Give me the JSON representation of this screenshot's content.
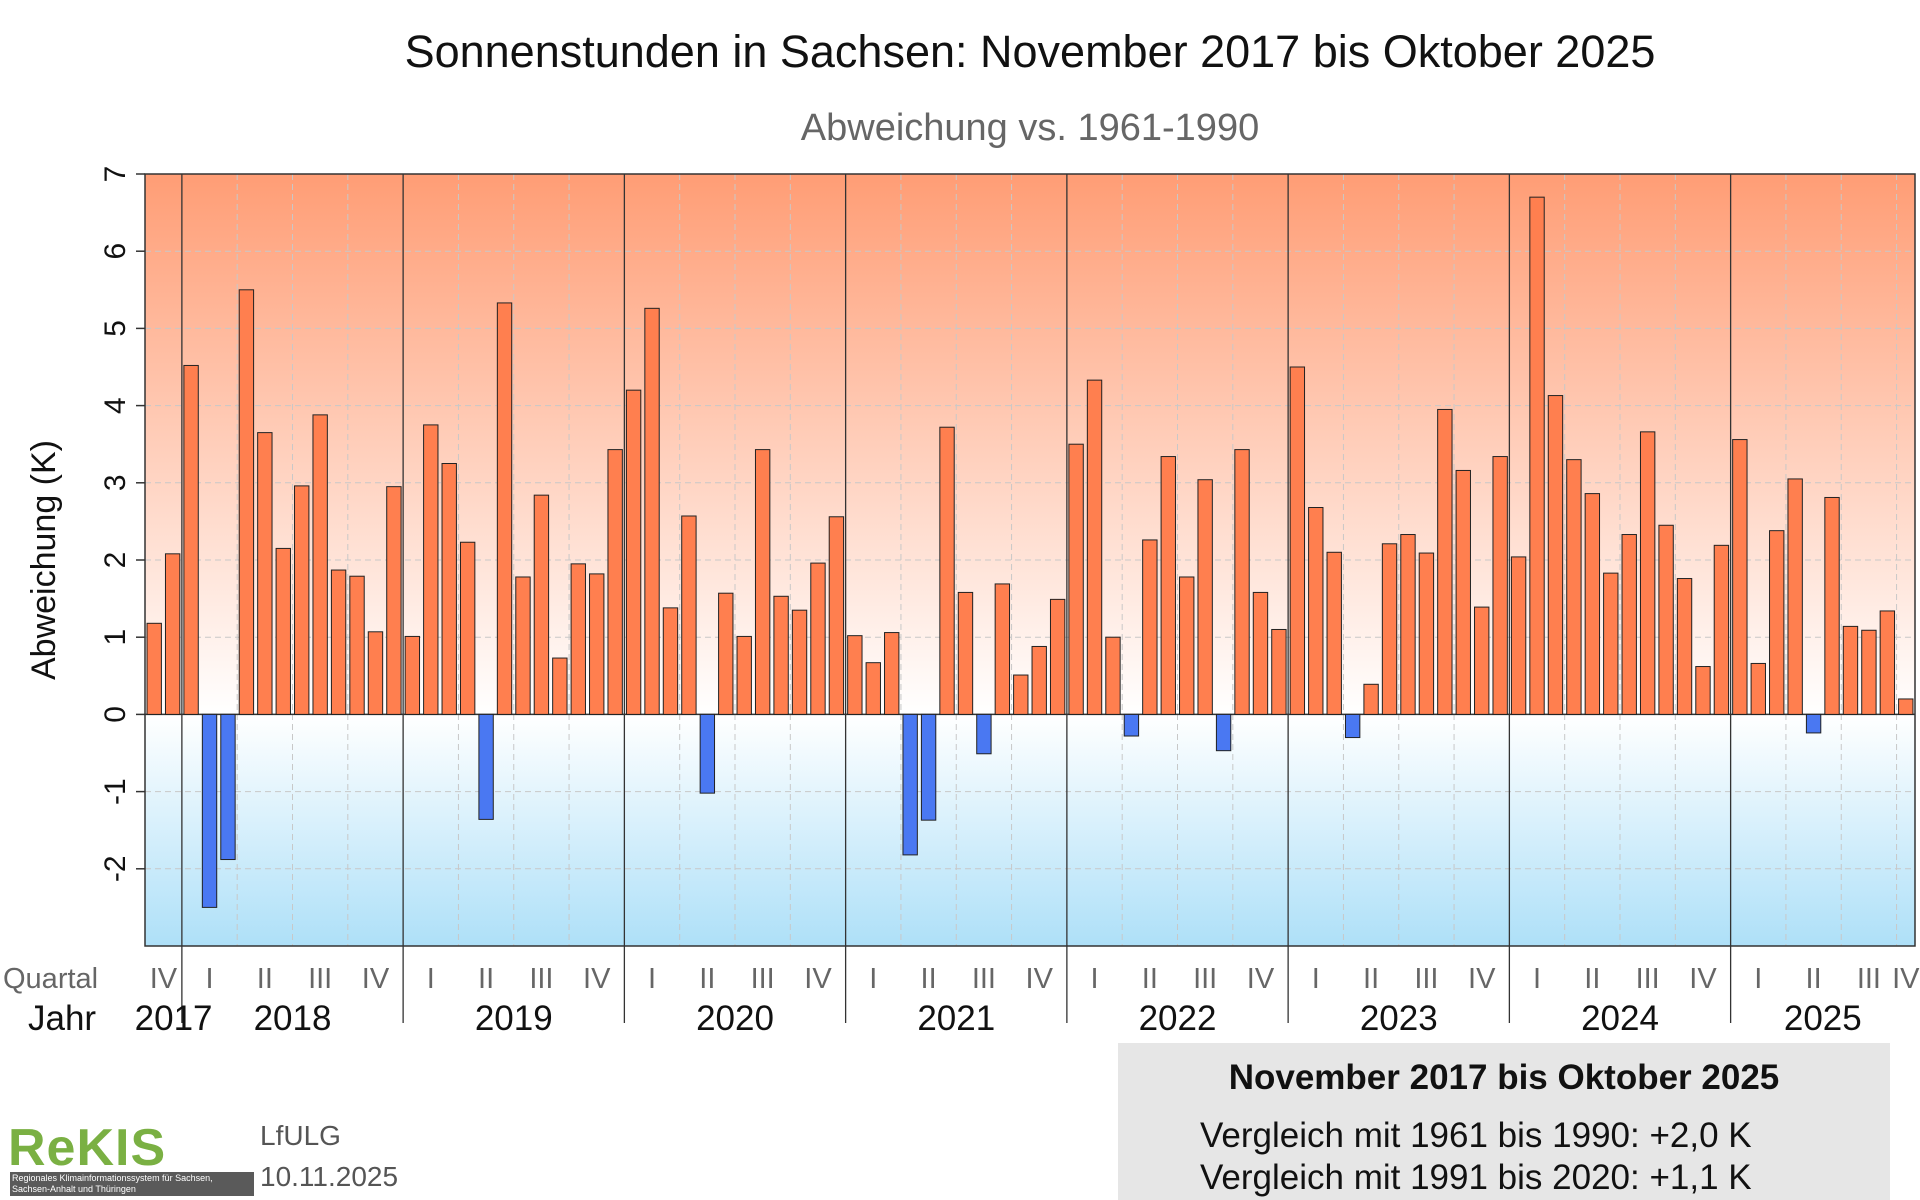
{
  "chart_data": {
    "type": "bar",
    "title": "Sonnenstunden in Sachsen: November 2017 bis Oktober 2025",
    "subtitle": "Abweichung vs. 1961-1990",
    "ylabel": "Abweichung (K)",
    "ylim": [
      -3,
      7
    ],
    "yticks": [
      -2,
      -1,
      0,
      1,
      2,
      3,
      4,
      5,
      6,
      7
    ],
    "grid": true,
    "quarter_row_label": "Quartal",
    "year_row_label": "Jahr",
    "years": [
      "2017",
      "2018",
      "2019",
      "2020",
      "2021",
      "2022",
      "2023",
      "2024",
      "2025"
    ],
    "quarter_labels": [
      {
        "label": "IV",
        "year": "2017"
      },
      {
        "label": "I",
        "year": "2018"
      },
      {
        "label": "II",
        "year": "2018"
      },
      {
        "label": "III",
        "year": "2018"
      },
      {
        "label": "IV",
        "year": "2018"
      },
      {
        "label": "I",
        "year": "2019"
      },
      {
        "label": "II",
        "year": "2019"
      },
      {
        "label": "III",
        "year": "2019"
      },
      {
        "label": "IV",
        "year": "2019"
      },
      {
        "label": "I",
        "year": "2020"
      },
      {
        "label": "II",
        "year": "2020"
      },
      {
        "label": "III",
        "year": "2020"
      },
      {
        "label": "IV",
        "year": "2020"
      },
      {
        "label": "I",
        "year": "2021"
      },
      {
        "label": "II",
        "year": "2021"
      },
      {
        "label": "III",
        "year": "2021"
      },
      {
        "label": "IV",
        "year": "2021"
      },
      {
        "label": "I",
        "year": "2022"
      },
      {
        "label": "II",
        "year": "2022"
      },
      {
        "label": "III",
        "year": "2022"
      },
      {
        "label": "IV",
        "year": "2022"
      },
      {
        "label": "I",
        "year": "2023"
      },
      {
        "label": "II",
        "year": "2023"
      },
      {
        "label": "III",
        "year": "2023"
      },
      {
        "label": "IV",
        "year": "2023"
      },
      {
        "label": "I",
        "year": "2024"
      },
      {
        "label": "II",
        "year": "2024"
      },
      {
        "label": "III",
        "year": "2024"
      },
      {
        "label": "IV",
        "year": "2024"
      },
      {
        "label": "I",
        "year": "2025"
      },
      {
        "label": "II",
        "year": "2025"
      },
      {
        "label": "III",
        "year": "2025"
      },
      {
        "label": "IV",
        "year": "2025"
      }
    ],
    "months": [
      {
        "year": "2017",
        "month": 11,
        "value": 1.18
      },
      {
        "year": "2017",
        "month": 12,
        "value": 2.08
      },
      {
        "year": "2018",
        "month": 1,
        "value": 4.52
      },
      {
        "year": "2018",
        "month": 2,
        "value": -2.5
      },
      {
        "year": "2018",
        "month": 3,
        "value": -1.88
      },
      {
        "year": "2018",
        "month": 4,
        "value": 5.5
      },
      {
        "year": "2018",
        "month": 5,
        "value": 3.65
      },
      {
        "year": "2018",
        "month": 6,
        "value": 2.15
      },
      {
        "year": "2018",
        "month": 7,
        "value": 2.96
      },
      {
        "year": "2018",
        "month": 8,
        "value": 3.88
      },
      {
        "year": "2018",
        "month": 9,
        "value": 1.87
      },
      {
        "year": "2018",
        "month": 10,
        "value": 1.79
      },
      {
        "year": "2018",
        "month": 11,
        "value": 1.07
      },
      {
        "year": "2018",
        "month": 12,
        "value": 2.95
      },
      {
        "year": "2019",
        "month": 1,
        "value": 1.01
      },
      {
        "year": "2019",
        "month": 2,
        "value": 3.75
      },
      {
        "year": "2019",
        "month": 3,
        "value": 3.25
      },
      {
        "year": "2019",
        "month": 4,
        "value": 2.23
      },
      {
        "year": "2019",
        "month": 5,
        "value": -1.36
      },
      {
        "year": "2019",
        "month": 6,
        "value": 5.33
      },
      {
        "year": "2019",
        "month": 7,
        "value": 1.78
      },
      {
        "year": "2019",
        "month": 8,
        "value": 2.84
      },
      {
        "year": "2019",
        "month": 9,
        "value": 0.73
      },
      {
        "year": "2019",
        "month": 10,
        "value": 1.95
      },
      {
        "year": "2019",
        "month": 11,
        "value": 1.82
      },
      {
        "year": "2019",
        "month": 12,
        "value": 3.43
      },
      {
        "year": "2020",
        "month": 1,
        "value": 4.2
      },
      {
        "year": "2020",
        "month": 2,
        "value": 5.26
      },
      {
        "year": "2020",
        "month": 3,
        "value": 1.38
      },
      {
        "year": "2020",
        "month": 4,
        "value": 2.57
      },
      {
        "year": "2020",
        "month": 5,
        "value": -1.02
      },
      {
        "year": "2020",
        "month": 6,
        "value": 1.57
      },
      {
        "year": "2020",
        "month": 7,
        "value": 1.01
      },
      {
        "year": "2020",
        "month": 8,
        "value": 3.43
      },
      {
        "year": "2020",
        "month": 9,
        "value": 1.53
      },
      {
        "year": "2020",
        "month": 10,
        "value": 1.35
      },
      {
        "year": "2020",
        "month": 11,
        "value": 1.96
      },
      {
        "year": "2020",
        "month": 12,
        "value": 2.56
      },
      {
        "year": "2021",
        "month": 1,
        "value": 1.02
      },
      {
        "year": "2021",
        "month": 2,
        "value": 0.67
      },
      {
        "year": "2021",
        "month": 3,
        "value": 1.06
      },
      {
        "year": "2021",
        "month": 4,
        "value": -1.82
      },
      {
        "year": "2021",
        "month": 5,
        "value": -1.37
      },
      {
        "year": "2021",
        "month": 6,
        "value": 3.72
      },
      {
        "year": "2021",
        "month": 7,
        "value": 1.58
      },
      {
        "year": "2021",
        "month": 8,
        "value": -0.51
      },
      {
        "year": "2021",
        "month": 9,
        "value": 1.69
      },
      {
        "year": "2021",
        "month": 10,
        "value": 0.51
      },
      {
        "year": "2021",
        "month": 11,
        "value": 0.88
      },
      {
        "year": "2021",
        "month": 12,
        "value": 1.49
      },
      {
        "year": "2022",
        "month": 1,
        "value": 3.5
      },
      {
        "year": "2022",
        "month": 2,
        "value": 4.33
      },
      {
        "year": "2022",
        "month": 3,
        "value": 1.0
      },
      {
        "year": "2022",
        "month": 4,
        "value": -0.28
      },
      {
        "year": "2022",
        "month": 5,
        "value": 2.26
      },
      {
        "year": "2022",
        "month": 6,
        "value": 3.34
      },
      {
        "year": "2022",
        "month": 7,
        "value": 1.78
      },
      {
        "year": "2022",
        "month": 8,
        "value": 3.04
      },
      {
        "year": "2022",
        "month": 9,
        "value": -0.47
      },
      {
        "year": "2022",
        "month": 10,
        "value": 3.43
      },
      {
        "year": "2022",
        "month": 11,
        "value": 1.58
      },
      {
        "year": "2022",
        "month": 12,
        "value": 1.1
      },
      {
        "year": "2023",
        "month": 1,
        "value": 4.5
      },
      {
        "year": "2023",
        "month": 2,
        "value": 2.68
      },
      {
        "year": "2023",
        "month": 3,
        "value": 2.1
      },
      {
        "year": "2023",
        "month": 4,
        "value": -0.3
      },
      {
        "year": "2023",
        "month": 5,
        "value": 0.39
      },
      {
        "year": "2023",
        "month": 6,
        "value": 2.21
      },
      {
        "year": "2023",
        "month": 7,
        "value": 2.33
      },
      {
        "year": "2023",
        "month": 8,
        "value": 2.09
      },
      {
        "year": "2023",
        "month": 9,
        "value": 3.95
      },
      {
        "year": "2023",
        "month": 10,
        "value": 3.16
      },
      {
        "year": "2023",
        "month": 11,
        "value": 1.39
      },
      {
        "year": "2023",
        "month": 12,
        "value": 3.34
      },
      {
        "year": "2024",
        "month": 1,
        "value": 2.04
      },
      {
        "year": "2024",
        "month": 2,
        "value": 6.7
      },
      {
        "year": "2024",
        "month": 3,
        "value": 4.13
      },
      {
        "year": "2024",
        "month": 4,
        "value": 3.3
      },
      {
        "year": "2024",
        "month": 5,
        "value": 2.86
      },
      {
        "year": "2024",
        "month": 6,
        "value": 1.83
      },
      {
        "year": "2024",
        "month": 7,
        "value": 2.33
      },
      {
        "year": "2024",
        "month": 8,
        "value": 3.66
      },
      {
        "year": "2024",
        "month": 9,
        "value": 2.45
      },
      {
        "year": "2024",
        "month": 10,
        "value": 1.76
      },
      {
        "year": "2024",
        "month": 11,
        "value": 0.62
      },
      {
        "year": "2024",
        "month": 12,
        "value": 2.19
      },
      {
        "year": "2025",
        "month": 1,
        "value": 3.56
      },
      {
        "year": "2025",
        "month": 2,
        "value": 0.66
      },
      {
        "year": "2025",
        "month": 3,
        "value": 2.38
      },
      {
        "year": "2025",
        "month": 4,
        "value": 3.05
      },
      {
        "year": "2025",
        "month": 5,
        "value": -0.24
      },
      {
        "year": "2025",
        "month": 6,
        "value": 2.81
      },
      {
        "year": "2025",
        "month": 7,
        "value": 1.14
      },
      {
        "year": "2025",
        "month": 8,
        "value": 1.09
      },
      {
        "year": "2025",
        "month": 9,
        "value": 1.34
      },
      {
        "year": "2025",
        "month": 10,
        "value": 0.2
      }
    ],
    "colors": {
      "positive_bar": "#ff7f4f",
      "negative_bar": "#4a78f2",
      "bg_top": "#ff9d75",
      "bg_mid": "#ffffff",
      "bg_bottom": "#aee0f8",
      "grid": "#c8c8c8"
    }
  },
  "footer": {
    "logo_text": "ReKIS",
    "logo_subtext": "Regionales Klimainformationssystem für Sachsen, Sachsen-Anhalt und Thüringen",
    "org": "LfULG",
    "date": "10.11.2025"
  },
  "infobox": {
    "title": "November 2017 bis Oktober 2025",
    "line1": "Vergleich mit 1961 bis 1990: +2,0 K",
    "line2": "Vergleich mit 1991 bis 2020: +1,1 K"
  }
}
